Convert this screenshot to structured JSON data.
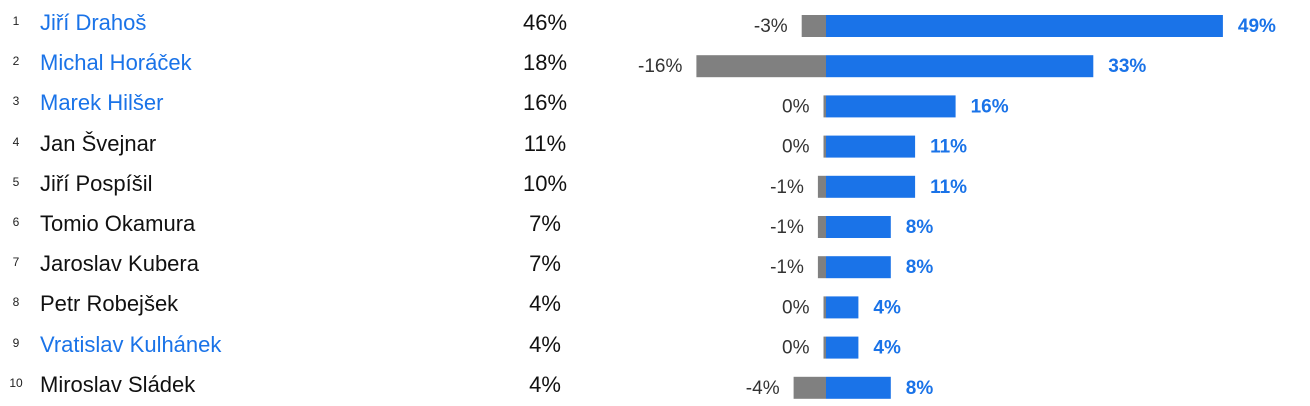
{
  "colors": {
    "link": "#1a73e8",
    "bar_positive": "#1a73e8",
    "bar_negative": "#808080"
  },
  "rows": [
    {
      "rank": "1",
      "name": "Jiří Drahoš",
      "link": true,
      "pct": "46%",
      "neg_label": "-3%",
      "pos_label": "49%"
    },
    {
      "rank": "2",
      "name": "Michal Horáček",
      "link": true,
      "pct": "18%",
      "neg_label": "-16%",
      "pos_label": "33%"
    },
    {
      "rank": "3",
      "name": "Marek Hilšer",
      "link": true,
      "pct": "16%",
      "neg_label": "0%",
      "pos_label": "16%"
    },
    {
      "rank": "4",
      "name": "Jan Švejnar",
      "link": false,
      "pct": "11%",
      "neg_label": "0%",
      "pos_label": "11%"
    },
    {
      "rank": "5",
      "name": "Jiří Pospíšil",
      "link": false,
      "pct": "10%",
      "neg_label": "-1%",
      "pos_label": "11%"
    },
    {
      "rank": "6",
      "name": "Tomio Okamura",
      "link": false,
      "pct": "7%",
      "neg_label": "-1%",
      "pos_label": "8%"
    },
    {
      "rank": "7",
      "name": "Jaroslav Kubera",
      "link": false,
      "pct": "7%",
      "neg_label": "-1%",
      "pos_label": "8%"
    },
    {
      "rank": "8",
      "name": "Petr Robejšek",
      "link": false,
      "pct": "4%",
      "neg_label": "0%",
      "pos_label": "4%"
    },
    {
      "rank": "9",
      "name": "Vratislav Kulhánek",
      "link": true,
      "pct": "4%",
      "neg_label": "0%",
      "pos_label": "4%"
    },
    {
      "rank": "10",
      "name": "Miroslav Sládek",
      "link": false,
      "pct": "4%",
      "neg_label": "-4%",
      "pos_label": "8%"
    }
  ],
  "chart_data": {
    "type": "bar",
    "categories": [
      "Jiří Drahoš",
      "Michal Horáček",
      "Marek Hilšer",
      "Jan Švejnar",
      "Jiří Pospíšil",
      "Tomio Okamura",
      "Jaroslav Kubera",
      "Petr Robejšek",
      "Vratislav Kulhánek",
      "Miroslav Sládek"
    ],
    "series": [
      {
        "values": [
          46,
          18,
          16,
          11,
          10,
          7,
          7,
          4,
          4,
          4
        ]
      },
      {
        "values": [
          -3,
          -16,
          0,
          0,
          -1,
          -1,
          -1,
          0,
          0,
          -4
        ]
      },
      {
        "values": [
          49,
          33,
          16,
          11,
          11,
          8,
          8,
          4,
          4,
          8
        ]
      }
    ],
    "orientation": "horizontal",
    "grid": false,
    "legend": "none"
  }
}
